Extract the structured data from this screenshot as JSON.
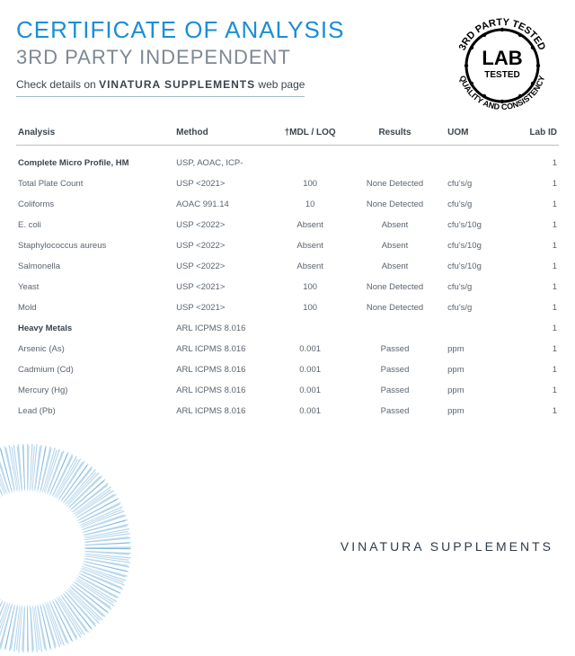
{
  "colors": {
    "accent": "#1a8ed6",
    "gray": "#7d8894",
    "text": "#3a4450",
    "black": "#000000"
  },
  "header": {
    "title": "CERTIFICATE OF ANALYSIS",
    "subtitle": "3RD PARTY INDEPENDENT",
    "check_prefix": "Check details on ",
    "brand": "VINATURA SUPPLEMENTS",
    "check_suffix": " web page"
  },
  "badge": {
    "top_text": "3RD PARTY TESTED",
    "bottom_text": "QUALITY AND CONSISTENCY",
    "center_top": "LAB",
    "center_bottom": "TESTED"
  },
  "table": {
    "columns": [
      "Analysis",
      "Method",
      "†MDL / LOQ",
      "Results",
      "UOM",
      "Lab ID"
    ],
    "col_classes": [
      "col-analysis",
      "col-method",
      "col-mdl",
      "col-results",
      "col-uom",
      "col-labid"
    ],
    "rows": [
      {
        "bold": true,
        "cells": [
          "Complete Micro Profile, HM",
          "USP, AOAC, ICP-",
          "",
          "",
          "",
          "1"
        ]
      },
      {
        "bold": false,
        "cells": [
          "Total Plate Count",
          "USP <2021>",
          "100",
          "None Detected",
          "cfu's/g",
          "1"
        ]
      },
      {
        "bold": false,
        "cells": [
          "Coliforms",
          "AOAC 991.14",
          "10",
          "None Detected",
          "cfu's/g",
          "1"
        ]
      },
      {
        "bold": false,
        "cells": [
          "E. coli",
          "USP <2022>",
          "Absent",
          "Absent",
          "cfu's/10g",
          "1"
        ]
      },
      {
        "bold": false,
        "cells": [
          "Staphylococcus aureus",
          "USP <2022>",
          "Absent",
          "Absent",
          "cfu's/10g",
          "1"
        ]
      },
      {
        "bold": false,
        "cells": [
          "Salmonella",
          "USP <2022>",
          "Absent",
          "Absent",
          "cfu's/10g",
          "1"
        ]
      },
      {
        "bold": false,
        "cells": [
          "Yeast",
          "USP <2021>",
          "100",
          "None Detected",
          "cfu's/g",
          "1"
        ]
      },
      {
        "bold": false,
        "cells": [
          "Mold",
          "USP <2021>",
          "100",
          "None Detected",
          "cfu's/g",
          "1"
        ]
      },
      {
        "bold": true,
        "cells": [
          "Heavy Metals",
          "ARL ICPMS 8.016",
          "",
          "",
          "",
          "1"
        ]
      },
      {
        "bold": false,
        "cells": [
          "Arsenic (As)",
          "ARL ICPMS 8.016",
          "0.001",
          "Passed",
          "ppm",
          "1"
        ]
      },
      {
        "bold": false,
        "cells": [
          "Cadmium (Cd)",
          "ARL ICPMS 8.016",
          "0.001",
          "Passed",
          "ppm",
          "1"
        ]
      },
      {
        "bold": false,
        "cells": [
          "Mercury (Hg)",
          "ARL ICPMS 8.016",
          "0.001",
          "Passed",
          "ppm",
          "1"
        ]
      },
      {
        "bold": false,
        "cells": [
          "Lead (Pb)",
          "ARL ICPMS 8.016",
          "0.001",
          "Passed",
          "ppm",
          "1"
        ]
      }
    ]
  },
  "footer": {
    "brand": "VINATURA SUPPLEMENTS"
  }
}
